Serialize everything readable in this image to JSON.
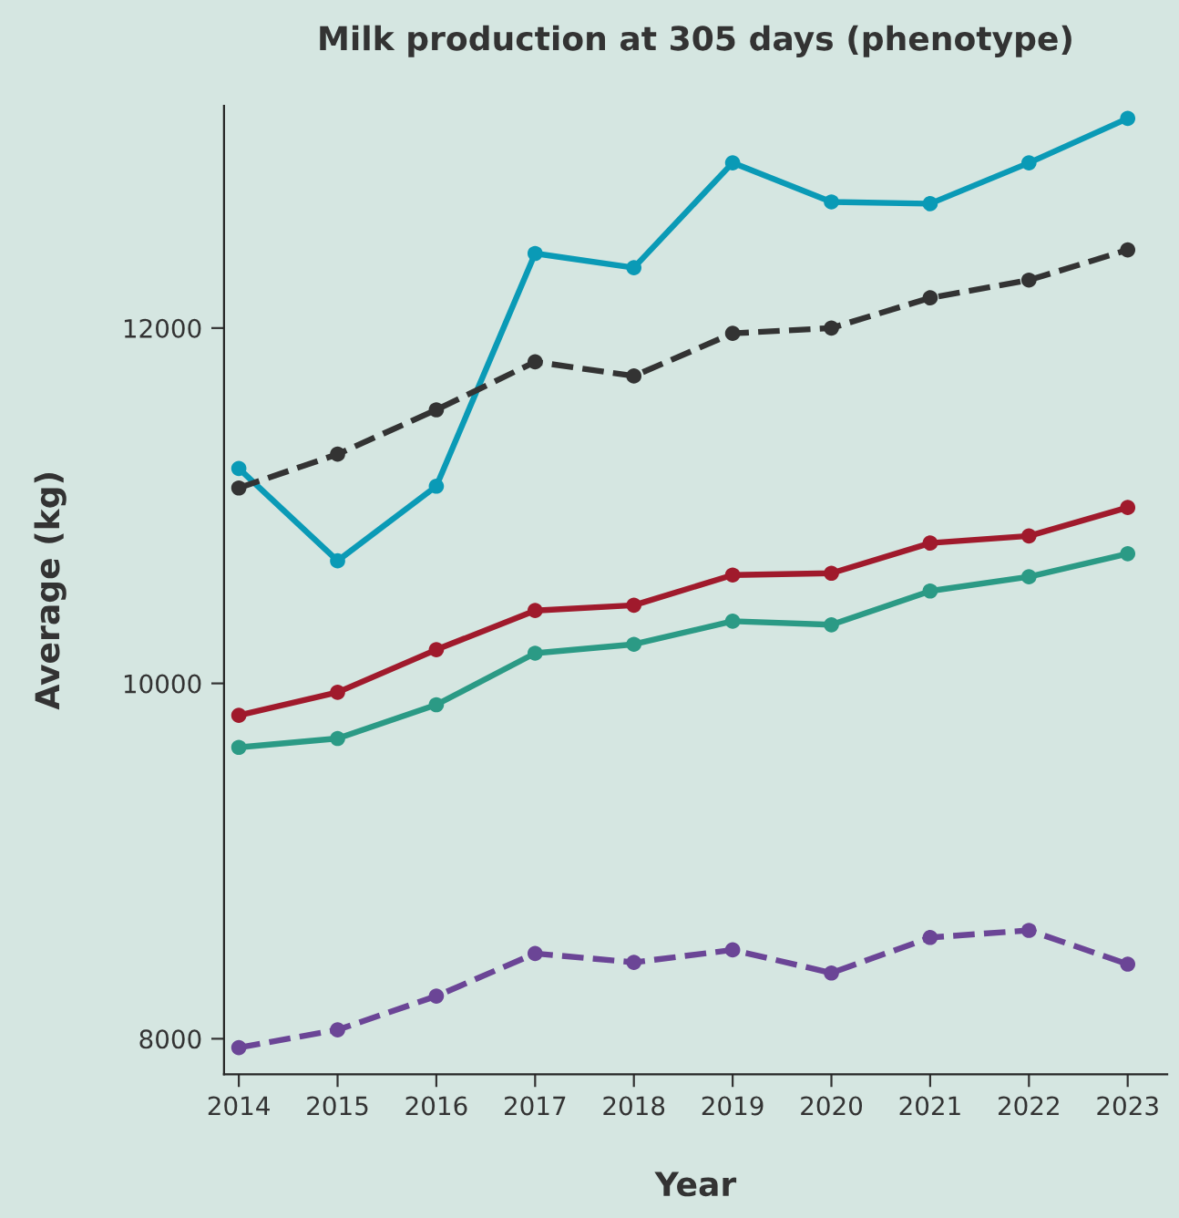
{
  "chart_data": {
    "type": "line",
    "title": "Milk production at 305 days (phenotype)",
    "xlabel": "Year",
    "ylabel": "Average (kg)",
    "x": [
      2014,
      2015,
      2016,
      2017,
      2018,
      2019,
      2020,
      2021,
      2022,
      2023
    ],
    "series": [
      {
        "color": "#0a9ab6",
        "line_style": "solid",
        "values": [
          11210,
          10690,
          11110,
          12420,
          12340,
          12930,
          12710,
          12700,
          12930,
          13180
        ]
      },
      {
        "color": "#333333",
        "line_style": "dashed",
        "values": [
          11100,
          11290,
          11540,
          11810,
          11730,
          11970,
          12000,
          12170,
          12270,
          12440
        ]
      },
      {
        "color": "#a01a2c",
        "line_style": "solid",
        "values": [
          9820,
          9950,
          10190,
          10410,
          10440,
          10610,
          10620,
          10790,
          10830,
          10990
        ]
      },
      {
        "color": "#2b9a85",
        "line_style": "solid",
        "values": [
          9640,
          9690,
          9880,
          10170,
          10220,
          10350,
          10330,
          10520,
          10600,
          10730
        ]
      },
      {
        "color": "#6b4596",
        "line_style": "dashed",
        "values": [
          7950,
          8050,
          8240,
          8480,
          8430,
          8500,
          8370,
          8570,
          8610,
          8420
        ]
      }
    ],
    "xlim": [
      2013.85,
      2023.4
    ],
    "ylim": [
      7800,
      13250
    ],
    "xticks": [
      2014,
      2015,
      2016,
      2017,
      2018,
      2019,
      2020,
      2021,
      2022,
      2023
    ],
    "yticks": [
      8000,
      10000,
      12000
    ],
    "marker": "circle",
    "grid": false,
    "legend": false
  }
}
